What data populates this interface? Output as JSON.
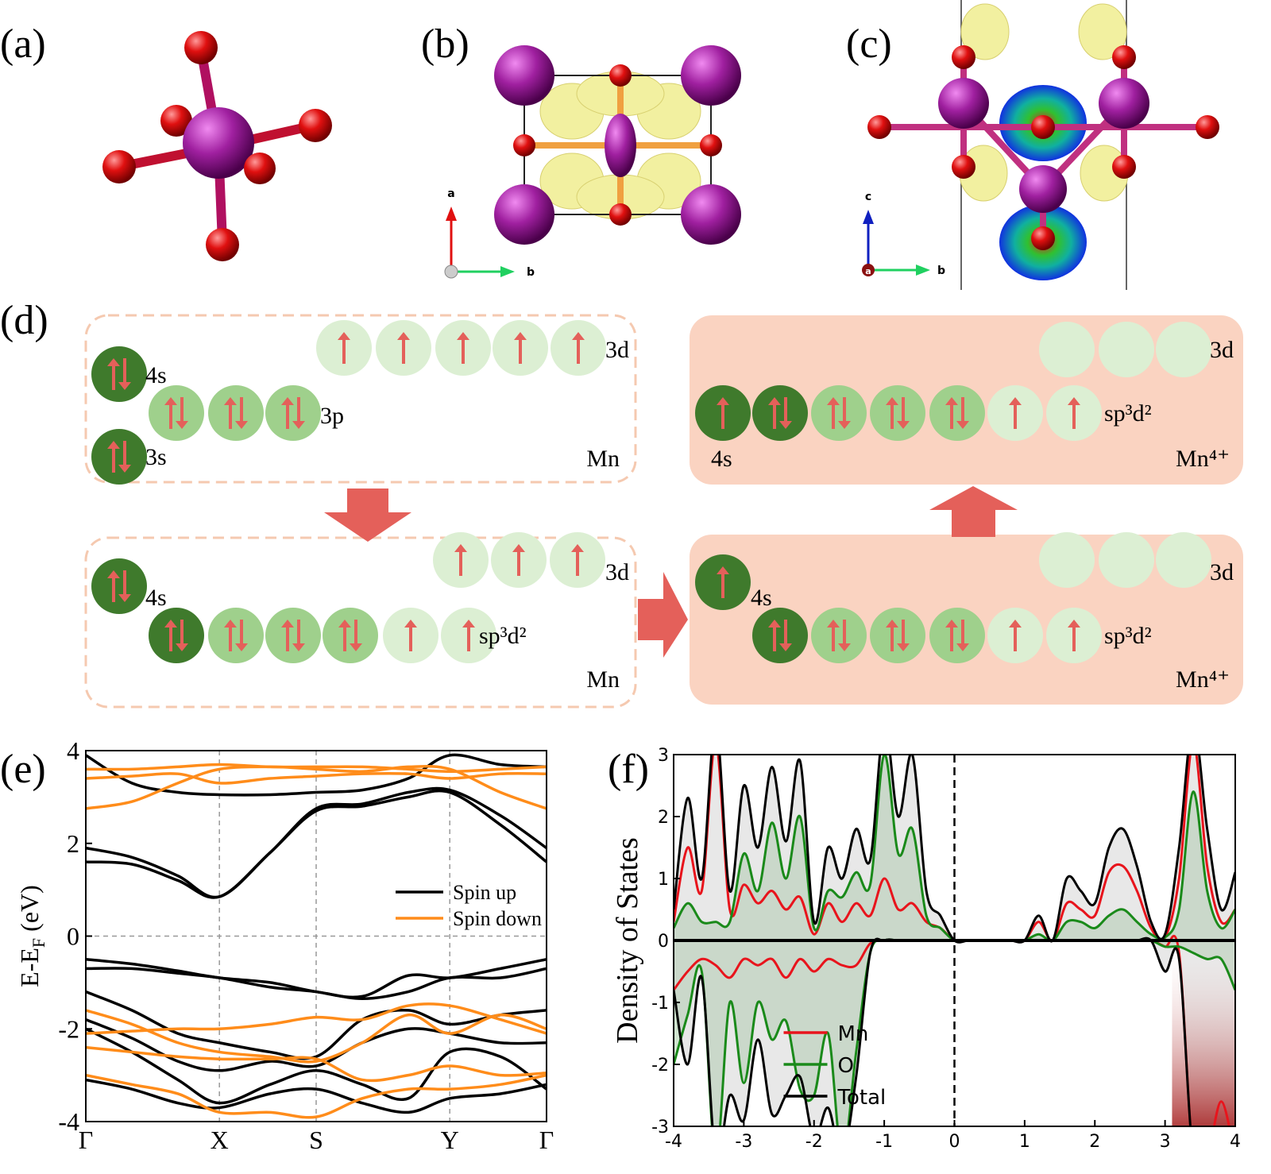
{
  "panel_labels": [
    "(a)",
    "(b)",
    "(c)",
    "(d)",
    "(e)",
    "(f)"
  ],
  "structure_axes": {
    "b": [
      "a",
      "b"
    ],
    "c": [
      "c",
      "b",
      "a"
    ]
  },
  "diagram": {
    "boxes": [
      {
        "texts": [
          "3d",
          "4s",
          "3p",
          "3s",
          "Mn"
        ]
      },
      {
        "texts": [
          "3d",
          "4s",
          "sp³d²",
          "Mn"
        ]
      },
      {
        "texts": [
          "3d",
          "4s",
          "sp³d²",
          "Mn⁴⁺"
        ]
      },
      {
        "texts": [
          "3d",
          "sp³d²",
          "4s",
          "Mn⁴⁺"
        ]
      }
    ]
  },
  "chart_data": [
    {
      "type": "line",
      "x": [
        0,
        0.1,
        0.2,
        0.29,
        0.4,
        0.5,
        0.6,
        0.7,
        0.79,
        0.9,
        1
      ],
      "xlim": [
        0,
        1
      ],
      "xticks": [
        {
          "value": 0,
          "label": "Γ"
        },
        {
          "value": 0.29,
          "label": "X"
        },
        {
          "value": 0.5,
          "label": "S"
        },
        {
          "value": 0.79,
          "label": "Y"
        },
        {
          "value": 1,
          "label": "Γ"
        }
      ],
      "ylim": [
        -4,
        4
      ],
      "yticks": [
        -4,
        -2,
        0,
        2,
        4
      ],
      "ylabel": {
        "text": "E-E",
        "subscript": "F",
        "unit": " (eV)"
      },
      "grid": true,
      "legend": "right",
      "series": [
        {
          "name": "Spin up",
          "color": "#000000",
          "bands": [
            [
              1.6,
              1.55,
              1.2,
              0.85,
              1.8,
              2.7,
              2.8,
              3.0,
              3.1,
              2.4,
              1.6
            ],
            [
              1.9,
              1.7,
              1.3,
              0.85,
              1.8,
              2.75,
              2.85,
              3.1,
              3.15,
              2.6,
              1.9
            ],
            [
              3.9,
              3.3,
              3.1,
              3.05,
              3.05,
              3.1,
              3.15,
              3.4,
              3.9,
              3.7,
              3.65
            ],
            [
              -0.5,
              -0.6,
              -0.75,
              -0.9,
              -1.0,
              -1.2,
              -1.3,
              -0.85,
              -0.9,
              -0.7,
              -0.5
            ],
            [
              -0.7,
              -0.7,
              -0.8,
              -0.9,
              -1.1,
              -1.2,
              -1.35,
              -1.2,
              -0.9,
              -0.9,
              -0.7
            ],
            [
              -1.2,
              -1.6,
              -2.1,
              -2.3,
              -2.5,
              -2.6,
              -1.8,
              -1.6,
              -1.9,
              -1.7,
              -1.6
            ],
            [
              -1.8,
              -2.2,
              -2.7,
              -2.9,
              -2.7,
              -2.8,
              -2.3,
              -2.0,
              -2.1,
              -2.3,
              -2.3
            ],
            [
              -2.0,
              -2.5,
              -3.1,
              -3.6,
              -3.2,
              -2.9,
              -3.2,
              -3.5,
              -2.5,
              -2.6,
              -3.3
            ],
            [
              -3.1,
              -3.3,
              -3.6,
              -3.7,
              -3.4,
              -3.3,
              -3.6,
              -3.8,
              -3.5,
              -3.4,
              -3.2
            ]
          ]
        },
        {
          "name": "Spin down",
          "color": "#ff8c1a",
          "bands": [
            [
              3.6,
              3.6,
              3.65,
              3.7,
              3.65,
              3.65,
              3.65,
              3.6,
              3.55,
              3.6,
              3.65
            ],
            [
              3.4,
              3.45,
              3.5,
              3.3,
              3.4,
              3.45,
              3.5,
              3.5,
              3.4,
              3.5,
              3.5
            ],
            [
              2.75,
              2.9,
              3.3,
              3.6,
              3.65,
              3.6,
              3.55,
              3.65,
              3.6,
              3.1,
              2.75
            ],
            [
              -2.1,
              -2.05,
              -2.0,
              -2.0,
              -1.9,
              -1.75,
              -1.8,
              -1.5,
              -1.5,
              -1.8,
              -2.1
            ],
            [
              -1.6,
              -1.9,
              -2.3,
              -2.5,
              -2.6,
              -2.7,
              -2.3,
              -1.7,
              -2.1,
              -1.7,
              -2.0
            ],
            [
              -2.4,
              -2.5,
              -2.6,
              -2.65,
              -2.65,
              -2.65,
              -3.1,
              -3.0,
              -2.8,
              -3.0,
              -2.95
            ],
            [
              -3.0,
              -3.2,
              -3.4,
              -3.8,
              -3.8,
              -3.9,
              -3.5,
              -3.3,
              -3.3,
              -3.2,
              -3.0
            ]
          ]
        }
      ]
    },
    {
      "type": "line",
      "x": [
        -4,
        -3.8,
        -3.6,
        -3.4,
        -3.2,
        -3,
        -2.8,
        -2.6,
        -2.4,
        -2.2,
        -2,
        -1.8,
        -1.6,
        -1.4,
        -1.2,
        -1,
        -0.8,
        -0.6,
        -0.4,
        -0.2,
        0,
        0.2,
        0.4,
        0.6,
        0.8,
        1,
        1.2,
        1.4,
        1.6,
        1.8,
        2,
        2.2,
        2.4,
        2.6,
        2.8,
        3,
        3.2,
        3.4,
        3.6,
        3.8,
        4
      ],
      "xlim": [
        -4,
        4
      ],
      "xticks": [
        -4,
        -3,
        -2,
        -1,
        0,
        1,
        2,
        3,
        4
      ],
      "ylim": [
        -3,
        3
      ],
      "yticks": [
        -3,
        -2,
        -1,
        0,
        1,
        2,
        3
      ],
      "ylabel": "Density of States",
      "legend": "lower center",
      "series": [
        {
          "name": "Mn",
          "color": "#e8141c",
          "up": [
            0.3,
            1.5,
            0.8,
            3.2,
            0.5,
            0.9,
            0.6,
            0.8,
            0.5,
            0.7,
            0.1,
            0.6,
            0.3,
            0.6,
            0.4,
            1.0,
            0.5,
            0.6,
            0.3,
            0.2,
            0,
            0,
            0,
            0,
            0,
            0,
            0.3,
            0,
            0.6,
            0.5,
            0.4,
            1.1,
            1.2,
            0.8,
            0.2,
            0.05,
            1.0,
            3.2,
            1.2,
            0.3,
            0.5
          ],
          "down": [
            -0.8,
            -0.5,
            -0.3,
            -0.4,
            -0.6,
            -0.3,
            -0.4,
            -0.3,
            -0.6,
            -0.3,
            -0.5,
            -0.3,
            -0.4,
            -0.4,
            -0.05,
            0,
            0,
            0,
            0,
            0,
            0,
            0,
            0,
            0,
            0,
            0,
            0,
            0,
            0,
            0,
            0,
            0,
            0,
            0,
            0,
            -0.1,
            -0.2,
            -3.5,
            -3.5,
            -2.6,
            -3.5
          ]
        },
        {
          "name": "O",
          "color": "#1a8a1a",
          "up": [
            0.2,
            0.6,
            0.3,
            0.3,
            0.3,
            1.4,
            0.8,
            1.9,
            1.0,
            2.0,
            0.2,
            0.8,
            0.7,
            1.1,
            0.9,
            3.0,
            1.4,
            1.8,
            0.4,
            0.2,
            0,
            0,
            0,
            0,
            0,
            0,
            0.1,
            0,
            0.3,
            0.3,
            0.2,
            0.4,
            0.5,
            0.3,
            0.1,
            0.05,
            0.5,
            2.4,
            0.8,
            0.2,
            0.5
          ],
          "down": [
            -2.0,
            -1.2,
            -0.5,
            -3.5,
            -1.0,
            -2.3,
            -1.0,
            -1.6,
            -1.3,
            -2.4,
            -2.5,
            -1.5,
            -3.5,
            -1.8,
            -0.2,
            0,
            0,
            0,
            0,
            0,
            0,
            0,
            0,
            0,
            0,
            0,
            0,
            0,
            0,
            0,
            0,
            0,
            0,
            0,
            0,
            -0.1,
            -0.1,
            -0.2,
            -0.3,
            -0.3,
            -0.8
          ]
        },
        {
          "name": "Total",
          "color": "#000000",
          "up": [
            0.5,
            2.3,
            1.0,
            3.5,
            0.8,
            2.5,
            1.5,
            2.8,
            1.6,
            2.9,
            0.3,
            1.5,
            1.0,
            1.8,
            1.3,
            3.5,
            2.0,
            3.0,
            0.8,
            0.4,
            0,
            0,
            0,
            0,
            0,
            0,
            0.4,
            0,
            1.0,
            0.8,
            0.6,
            1.5,
            1.8,
            1.2,
            0.3,
            0.1,
            1.5,
            3.5,
            1.8,
            0.5,
            1.1
          ],
          "down": [
            -0.8,
            -2.0,
            -0.6,
            -3.5,
            -2.5,
            -2.9,
            -1.6,
            -2.8,
            -2.5,
            -2.2,
            -3.2,
            -2.7,
            -3.5,
            -2.2,
            -0.2,
            0,
            0,
            0,
            0,
            0,
            0,
            0,
            0,
            0,
            0,
            0,
            0,
            0,
            0,
            0,
            0,
            0,
            0,
            0,
            0,
            -0.5,
            -0.3,
            -3.5,
            -3.5,
            -3.5,
            -3.5
          ]
        }
      ]
    }
  ]
}
